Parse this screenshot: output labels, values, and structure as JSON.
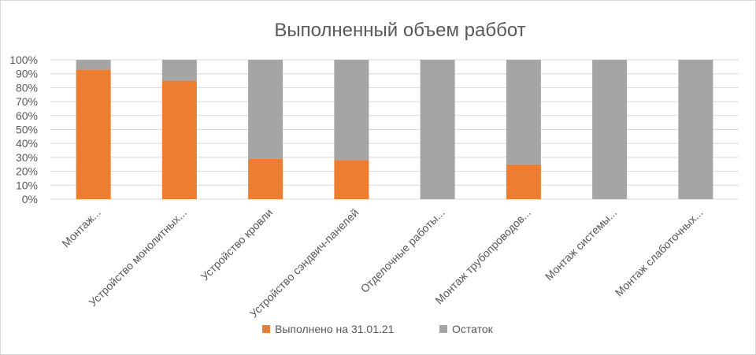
{
  "chart_data": {
    "type": "bar",
    "stacked": true,
    "percent_stacked": true,
    "title": "Выполненный объем раббот",
    "categories": [
      "Монтаж...",
      "Устройство монолитных...",
      "Устройство кровли",
      "Устройство сэндвич-панелей",
      "Отделочные работы...",
      "Монтаж трубопроводов...",
      "Монтаж системы...",
      "Монтаж слаботочных..."
    ],
    "series": [
      {
        "name": "Выполнено на 31.01.21",
        "color": "#ed7d31",
        "values": [
          93,
          85,
          29,
          28,
          0,
          25,
          0,
          0
        ]
      },
      {
        "name": "Остаток",
        "color": "#a5a5a5",
        "values": [
          7,
          15,
          71,
          72,
          100,
          75,
          100,
          100
        ]
      }
    ],
    "y_ticks": [
      "0%",
      "10%",
      "20%",
      "30%",
      "40%",
      "50%",
      "60%",
      "70%",
      "80%",
      "90%",
      "100%"
    ],
    "ylim": [
      0,
      100
    ],
    "grid": true,
    "legend_position": "bottom"
  }
}
